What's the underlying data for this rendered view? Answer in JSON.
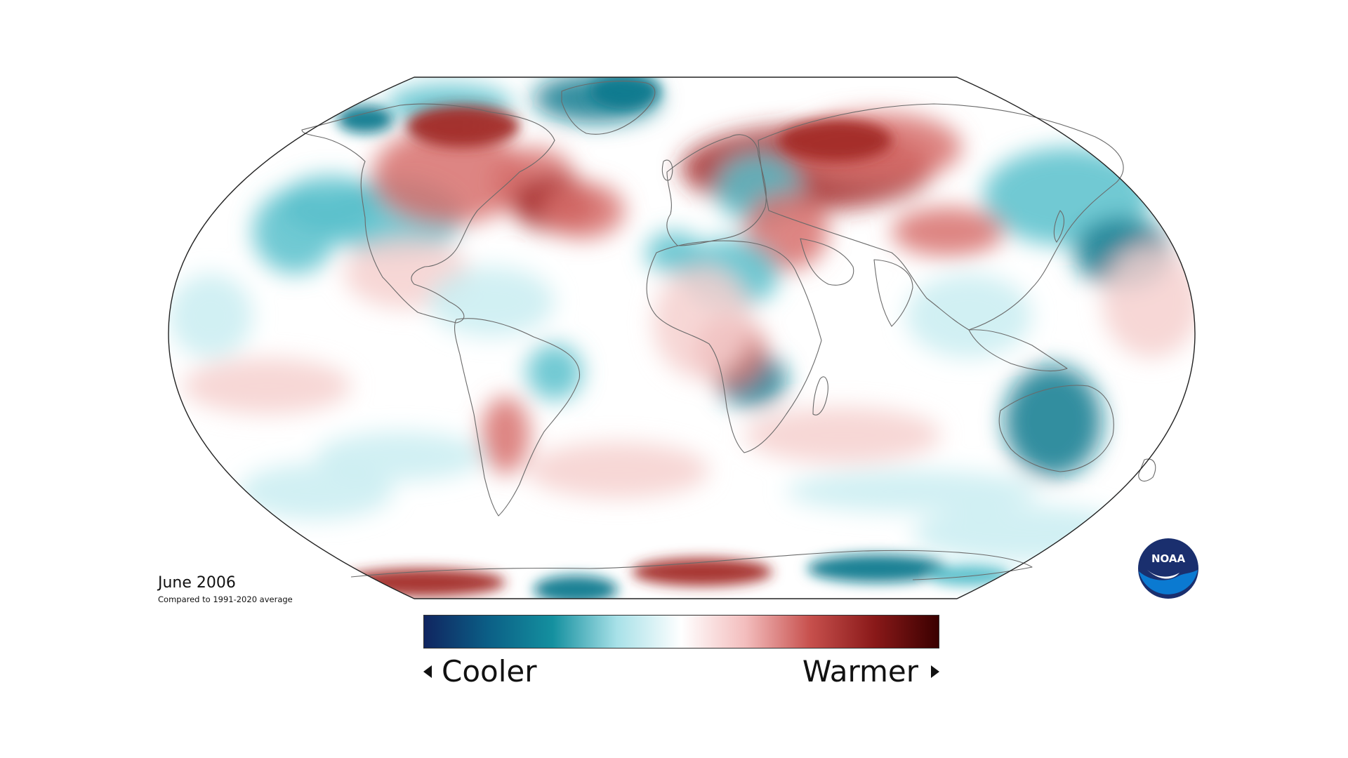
{
  "map": {
    "date": "June 2006",
    "baseline": "Compared to 1991-2020 average",
    "projection": "Robinson",
    "variable": "temperature anomaly"
  },
  "legend": {
    "cooler_label": "Cooler",
    "warmer_label": "Warmer",
    "color_stops": [
      "#102560",
      "#0b5f86",
      "#14909f",
      "#a8e1e8",
      "#ffffff",
      "#f3bdbd",
      "#c7504d",
      "#8a1919",
      "#3a0000"
    ]
  },
  "palette": {
    "cool_strong": "#0e7a8e",
    "cool": "#58bfcb",
    "cool_light": "#c9edf1",
    "warm_light": "#f6d0cf",
    "warm": "#d7706c",
    "warm_strong": "#a32a28",
    "outline": "#222222",
    "coast": "#6a6a6a"
  },
  "logo": {
    "text": "NOAA",
    "colors": [
      "#1a2f6e",
      "#0b7ad1"
    ]
  }
}
